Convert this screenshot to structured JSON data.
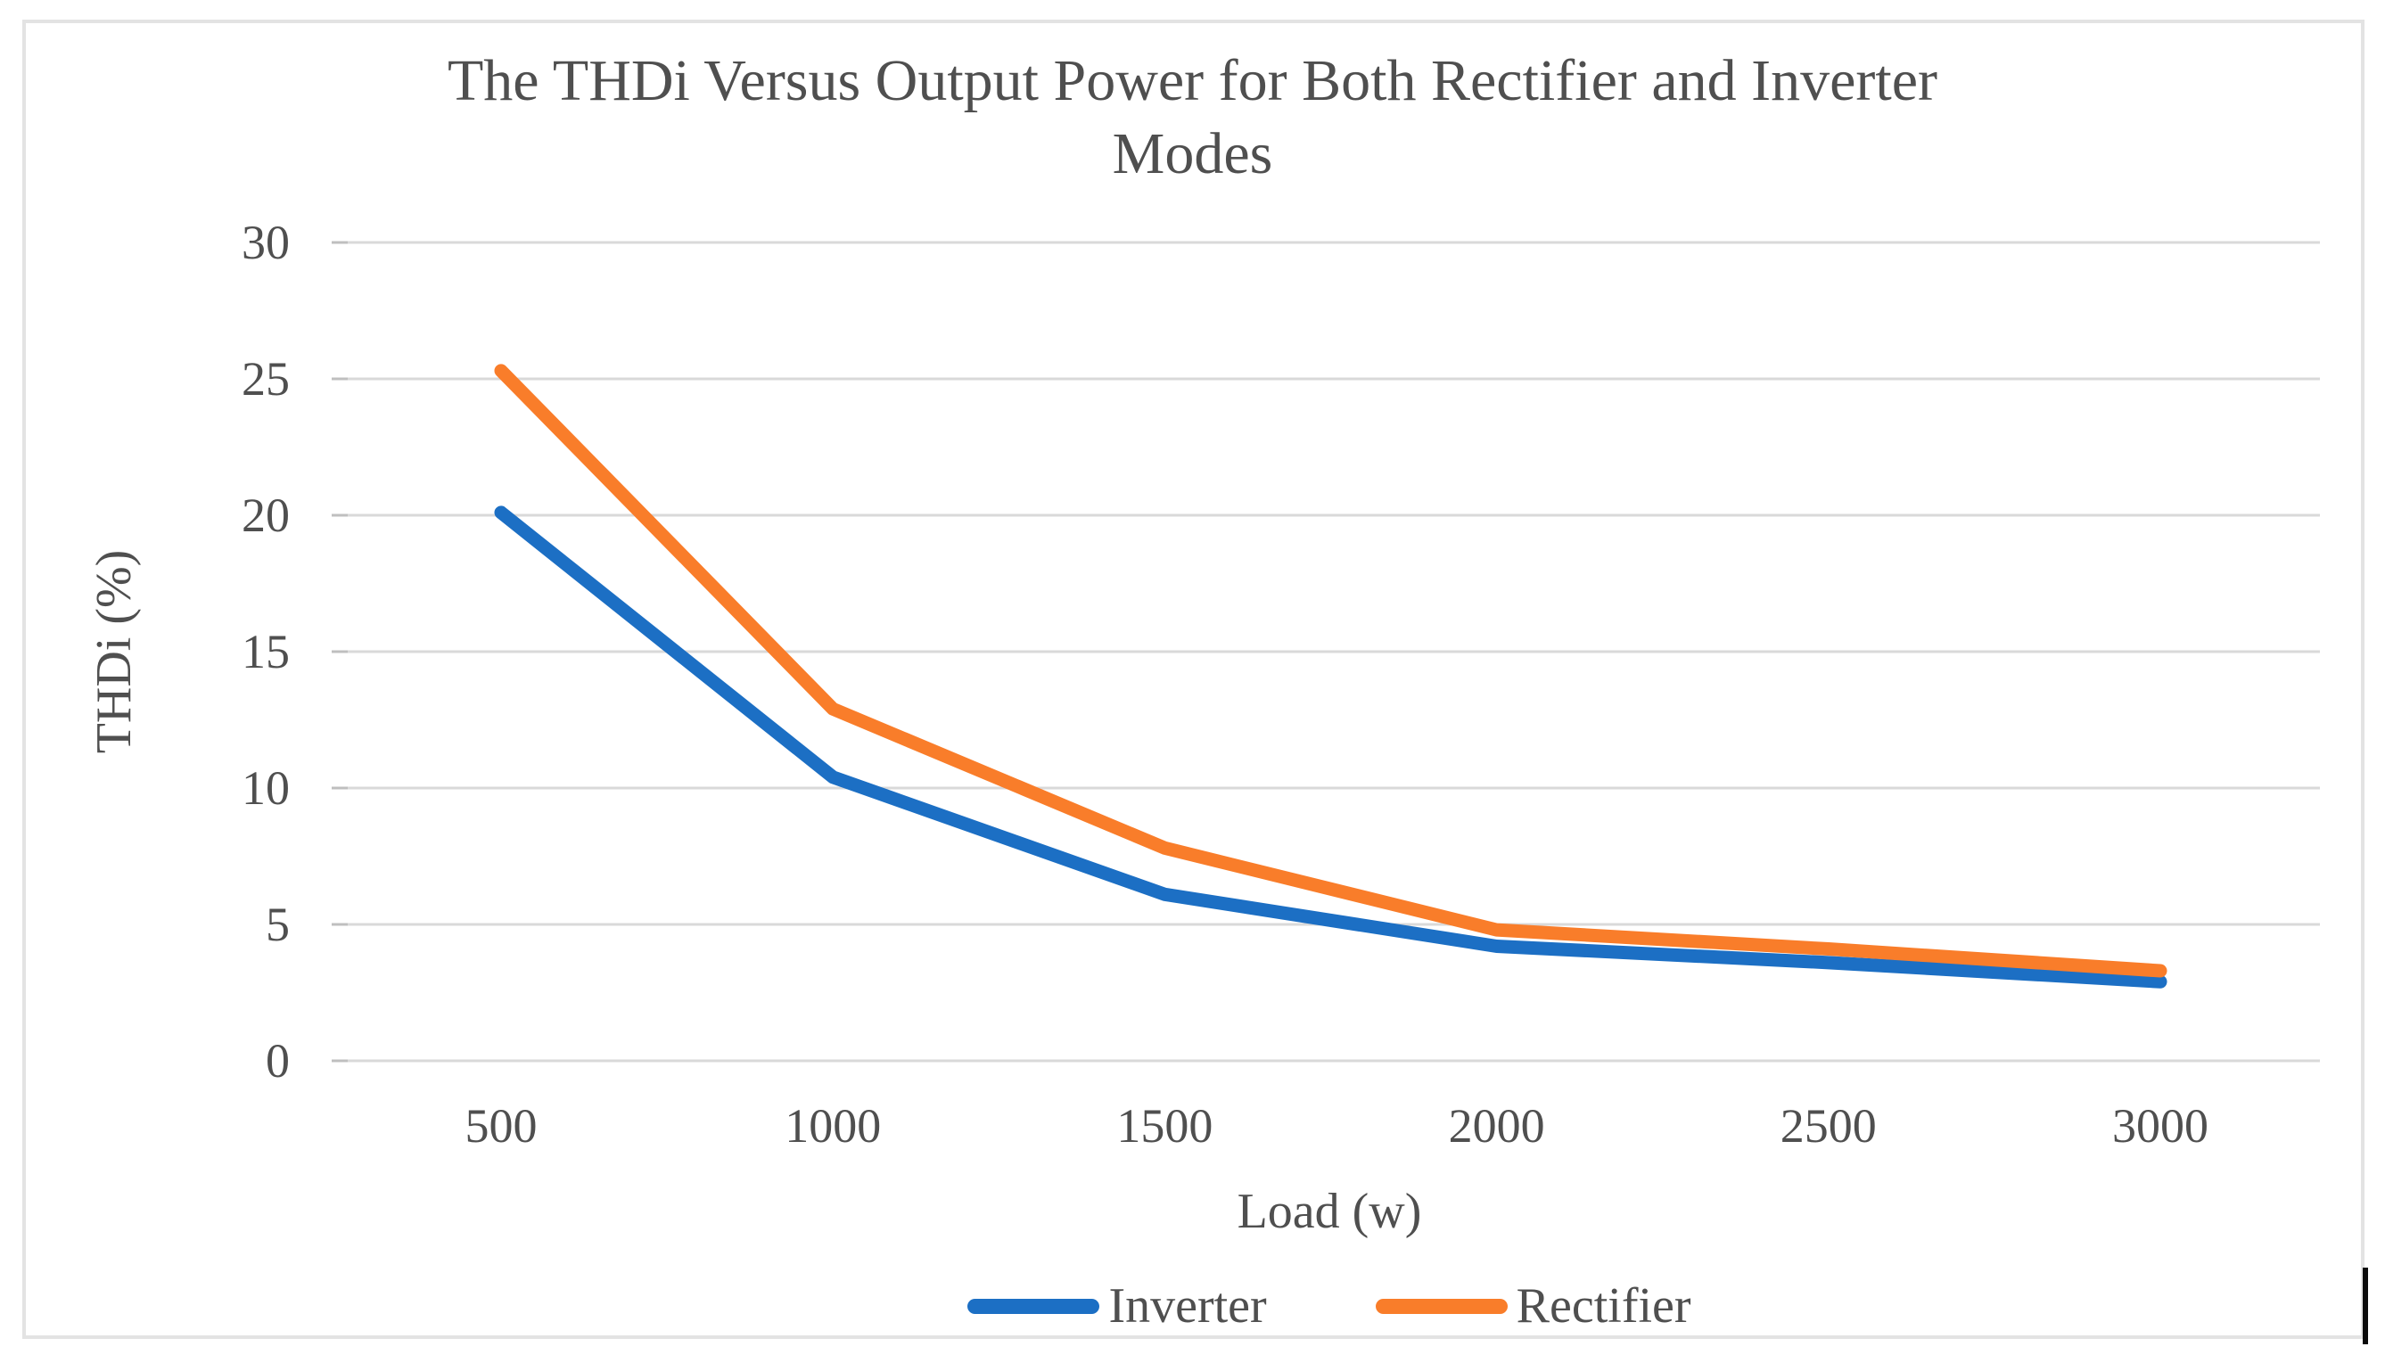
{
  "chart": {
    "title_lines": [
      "The THDi Versus Output Power for Both Rectifier and Inverter",
      "Modes"
    ],
    "y_axis": {
      "title": "THDi (%)",
      "ticks": [
        30,
        25,
        20,
        15,
        10,
        5,
        0
      ]
    },
    "x_axis": {
      "title": "Load (w)",
      "categories": [
        "500",
        "1000",
        "1500",
        "2000",
        "2500",
        "3000"
      ]
    },
    "legend": [
      "Inverter",
      "Rectifier"
    ]
  },
  "chart_data": {
    "type": "line",
    "title": "The THDi Versus Output Power for Both Rectifier and Inverter Modes",
    "xlabel": "Load (w)",
    "ylabel": "THDi (%)",
    "x": [
      500,
      1000,
      1500,
      2000,
      2500,
      3000
    ],
    "series": [
      {
        "name": "Inverter",
        "color": "#1C6FC4",
        "values": [
          20.1,
          10.4,
          6.1,
          4.2,
          3.6,
          2.9
        ]
      },
      {
        "name": "Rectifier",
        "color": "#F97D2A",
        "values": [
          25.3,
          12.9,
          7.8,
          4.8,
          4.1,
          3.3
        ]
      }
    ],
    "ylim": [
      0,
      30
    ],
    "grid": true,
    "legend_position": "bottom",
    "colors": {
      "gridline": "#D9D9D9",
      "tick": "#BFBFBF",
      "text": "#4F4F4F"
    }
  }
}
